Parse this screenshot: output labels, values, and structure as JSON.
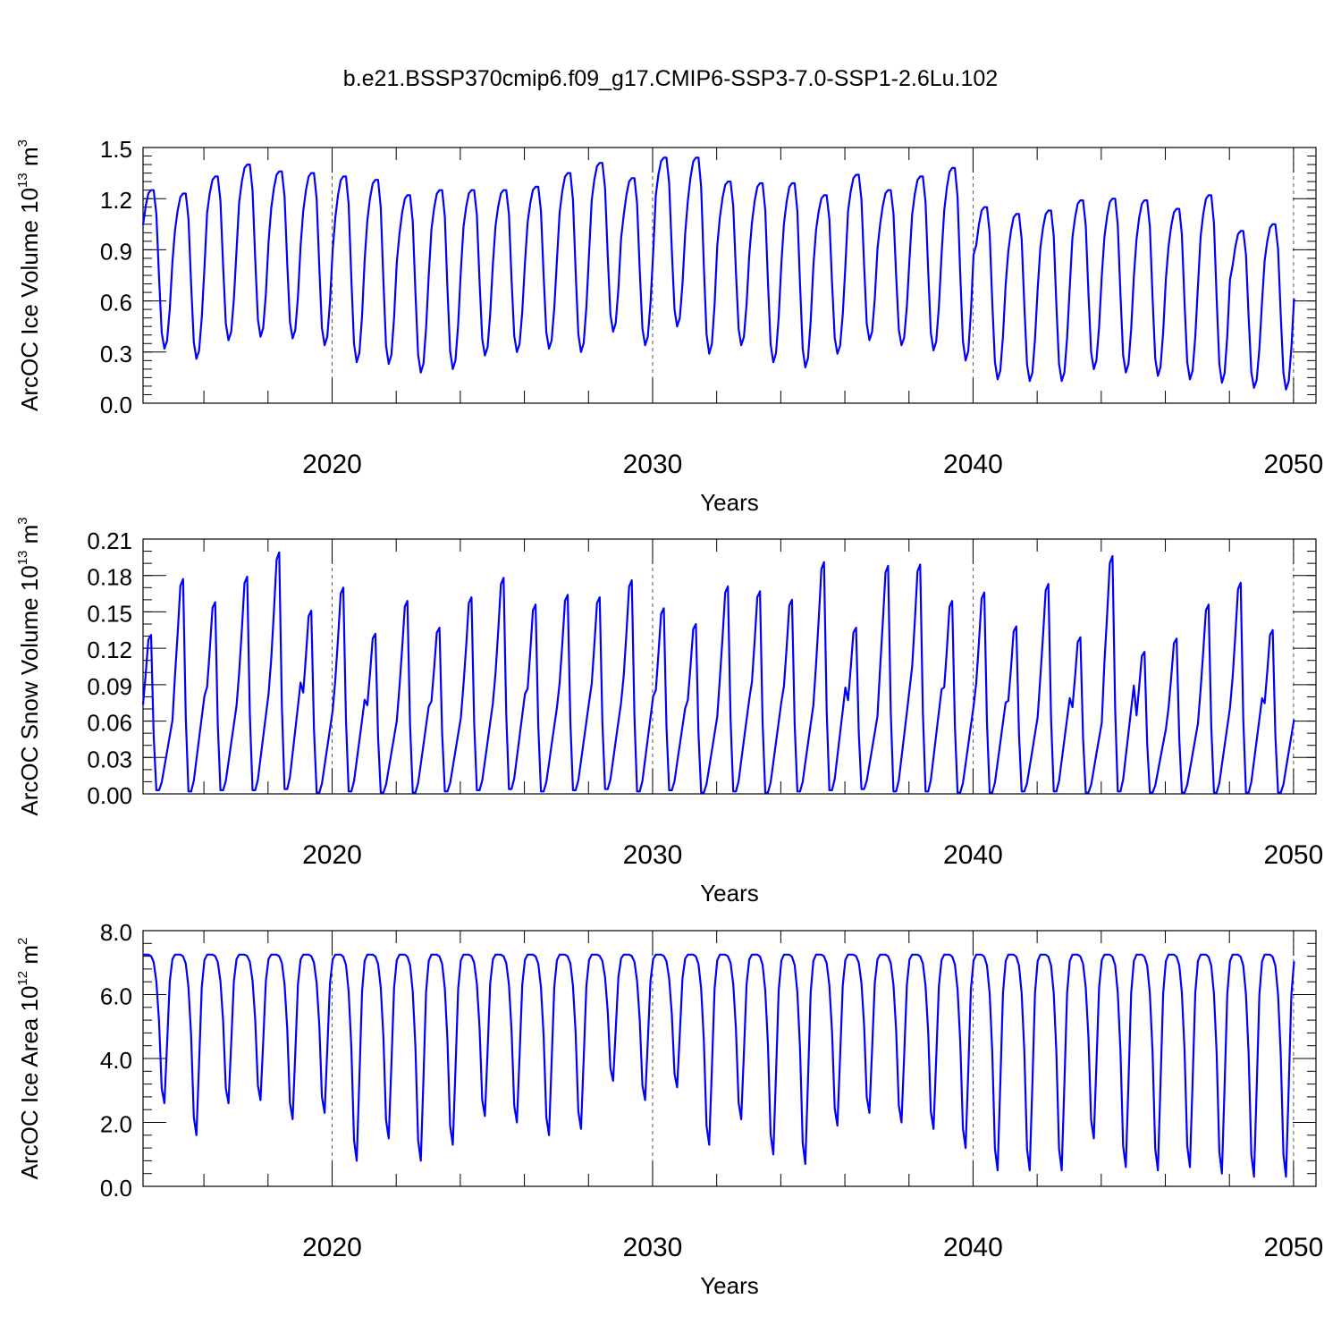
{
  "title": "b.e21.BSSP370cmip6.f09_g17.CMIP6-SSP3-7.0-SSP1-2.6Lu.102",
  "colors": {
    "line": "#0000ff",
    "axis": "#000000",
    "refline": "#555555"
  },
  "chart_data": [
    {
      "type": "line",
      "ylabel_main": "ArcOC Ice Volume 10",
      "ylabel_exp": "13",
      "ylabel_unit": " m",
      "ylabel_unit_exp": "3",
      "xlabel": "Years",
      "xlim": [
        2014.1,
        2050.7
      ],
      "ylim": [
        0.0,
        1.5
      ],
      "yticks": [
        "0.0",
        "0.3",
        "0.6",
        "0.9",
        "1.2",
        "1.5"
      ],
      "yminor": 0.05,
      "xticks": [
        "2020",
        "2030",
        "2040",
        "2050"
      ],
      "reflines": [
        2020,
        2030,
        2040,
        2050
      ],
      "start_year": 2014.1,
      "annual_max": [
        1.25,
        1.23,
        1.33,
        1.4,
        1.36,
        1.35,
        1.33,
        1.31,
        1.22,
        1.25,
        1.25,
        1.25,
        1.27,
        1.35,
        1.41,
        1.32,
        1.44,
        1.44,
        1.3,
        1.29,
        1.29,
        1.22,
        1.34,
        1.25,
        1.33,
        1.38,
        1.15,
        1.11,
        1.13,
        1.19,
        1.2,
        1.19,
        1.14,
        1.22,
        1.01,
        1.05
      ],
      "annual_min": [
        0.32,
        0.26,
        0.37,
        0.39,
        0.38,
        0.34,
        0.24,
        0.23,
        0.18,
        0.2,
        0.28,
        0.3,
        0.32,
        0.3,
        0.42,
        0.34,
        0.45,
        0.29,
        0.34,
        0.24,
        0.21,
        0.29,
        0.37,
        0.34,
        0.31,
        0.25,
        0.14,
        0.13,
        0.13,
        0.2,
        0.18,
        0.16,
        0.14,
        0.12,
        0.09,
        0.08
      ],
      "shape": "volume"
    },
    {
      "type": "line",
      "ylabel_main": "ArcOC Snow Volume 10",
      "ylabel_exp": "13",
      "ylabel_unit": " m",
      "ylabel_unit_exp": "3",
      "xlabel": "Years",
      "xlim": [
        2014.1,
        2050.7
      ],
      "ylim": [
        0.0,
        0.21
      ],
      "yticks": [
        "0.00",
        "0.03",
        "0.06",
        "0.09",
        "0.12",
        "0.15",
        "0.18",
        "0.21"
      ],
      "yminor": 0.01,
      "xticks": [
        "2020",
        "2030",
        "2040",
        "2050"
      ],
      "reflines": [
        2020,
        2030,
        2040,
        2050
      ],
      "start_year": 2014.1,
      "annual_max": [
        0.131,
        0.177,
        0.158,
        0.179,
        0.199,
        0.151,
        0.17,
        0.132,
        0.159,
        0.137,
        0.162,
        0.178,
        0.156,
        0.164,
        0.162,
        0.176,
        0.153,
        0.14,
        0.171,
        0.167,
        0.16,
        0.191,
        0.137,
        0.188,
        0.189,
        0.159,
        0.166,
        0.138,
        0.173,
        0.129,
        0.196,
        0.117,
        0.128,
        0.156,
        0.174,
        0.135
      ],
      "annual_min": [
        0.003,
        0.002,
        0.003,
        0.003,
        0.004,
        0.001,
        0.002,
        0.001,
        0.001,
        0.002,
        0.003,
        0.004,
        0.002,
        0.003,
        0.004,
        0.002,
        0.003,
        0.001,
        0.002,
        0.001,
        0.002,
        0.003,
        0.004,
        0.002,
        0.002,
        0.001,
        0.001,
        0.002,
        0.002,
        0.001,
        0.002,
        0.001,
        0.001,
        0.001,
        0.001,
        0.001
      ],
      "shape": "snow"
    },
    {
      "type": "line",
      "ylabel_main": "ArcOC Ice Area 10",
      "ylabel_exp": "12",
      "ylabel_unit": " m",
      "ylabel_unit_exp": "2",
      "xlabel": "Years",
      "xlim": [
        2014.1,
        2050.7
      ],
      "ylim": [
        0.0,
        8.0
      ],
      "yticks": [
        "0.0",
        "2.0",
        "4.0",
        "6.0",
        "8.0"
      ],
      "yminor": 0.4,
      "xticks": [
        "2020",
        "2030",
        "2040",
        "2050"
      ],
      "reflines": [
        2020,
        2030,
        2040,
        2050
      ],
      "start_year": 2014.1,
      "annual_max": [
        7.25,
        7.25,
        7.25,
        7.25,
        7.25,
        7.25,
        7.25,
        7.25,
        7.25,
        7.25,
        7.25,
        7.25,
        7.25,
        7.25,
        7.25,
        7.25,
        7.25,
        7.25,
        7.25,
        7.25,
        7.25,
        7.25,
        7.25,
        7.25,
        7.25,
        7.25,
        7.25,
        7.25,
        7.25,
        7.25,
        7.25,
        7.25,
        7.25,
        7.25,
        7.25,
        7.25
      ],
      "annual_min": [
        2.6,
        1.6,
        2.6,
        2.7,
        2.1,
        2.3,
        0.8,
        1.5,
        0.8,
        1.3,
        2.2,
        2.0,
        1.6,
        1.8,
        3.3,
        2.7,
        3.1,
        1.3,
        2.1,
        1.0,
        0.7,
        1.9,
        2.3,
        2.0,
        1.8,
        1.2,
        0.5,
        0.5,
        0.5,
        1.5,
        0.6,
        0.5,
        0.6,
        0.4,
        0.3,
        0.3
      ],
      "shape": "area"
    }
  ]
}
